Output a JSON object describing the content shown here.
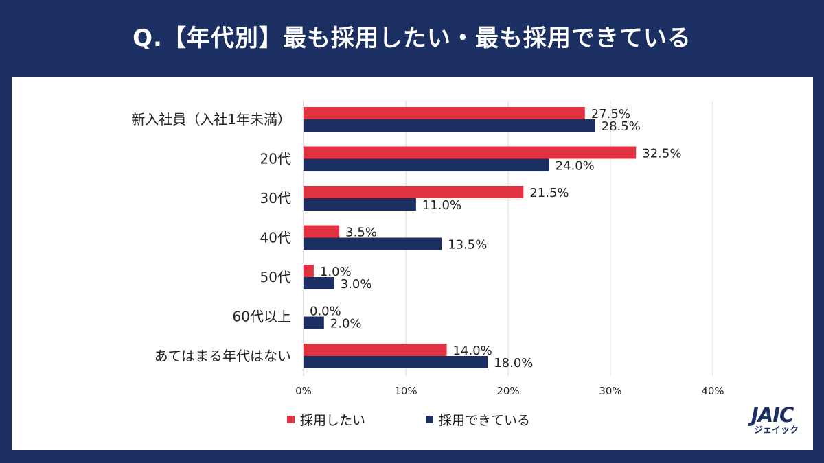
{
  "title": "Q.【年代別】最も採用したい・最も採用できている",
  "colors": {
    "background": "#1b2f63",
    "panel": "#ffffff",
    "series_want": "#e03241",
    "series_achieved": "#1b2f63",
    "grid": "#d9d9d9",
    "text": "#222222"
  },
  "logo": {
    "mark": "JAIC",
    "sub": "ジェイック"
  },
  "chart_data": {
    "type": "bar",
    "orientation": "horizontal",
    "categories": [
      "新入社員（入社1年未満）",
      "20代",
      "30代",
      "40代",
      "50代",
      "60代以上",
      "あてはまる年代はない"
    ],
    "series": [
      {
        "name": "採用したい",
        "values": [
          27.5,
          32.5,
          21.5,
          3.5,
          1.0,
          0.0,
          14.0
        ],
        "labels": [
          "27.5%",
          "32.5%",
          "21.5%",
          "3.5%",
          "1.0%",
          "0.0%",
          "14.0%"
        ]
      },
      {
        "name": "採用できている",
        "values": [
          28.5,
          24.0,
          11.0,
          13.5,
          3.0,
          2.0,
          18.0
        ],
        "labels": [
          "28.5%",
          "24.0%",
          "11.0%",
          "13.5%",
          "3.0%",
          "2.0%",
          "18.0%"
        ]
      }
    ],
    "xlim": [
      0,
      40
    ],
    "xticks": [
      "0%",
      "10%",
      "20%",
      "30%",
      "40%"
    ],
    "grid": true,
    "legend_position": "bottom"
  }
}
